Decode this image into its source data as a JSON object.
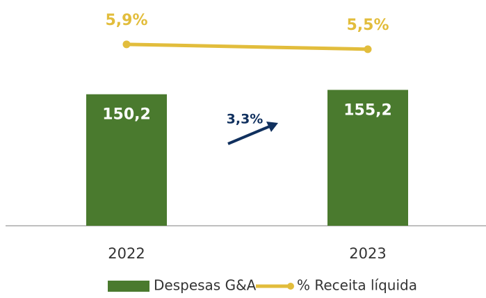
{
  "chart_data": {
    "type": "bar",
    "categories": [
      "2022",
      "2023"
    ],
    "series": [
      {
        "name": "Despesas G&A",
        "type": "bar",
        "color": "#4a7a2e",
        "values": [
          150.2,
          155.2
        ],
        "value_labels": [
          "150,2",
          "155,2"
        ]
      },
      {
        "name": "% Receita líquida",
        "type": "line",
        "axis": "y2",
        "color": "#e2bd3c",
        "values": [
          5.9,
          5.5
        ],
        "value_labels": [
          "5,9%",
          "5,5%"
        ]
      }
    ],
    "ylim": [
      0,
      242
    ],
    "y2lim": [
      -9,
      8.4
    ],
    "annotation": {
      "text": "3,3%",
      "color": "#10305e"
    }
  }
}
